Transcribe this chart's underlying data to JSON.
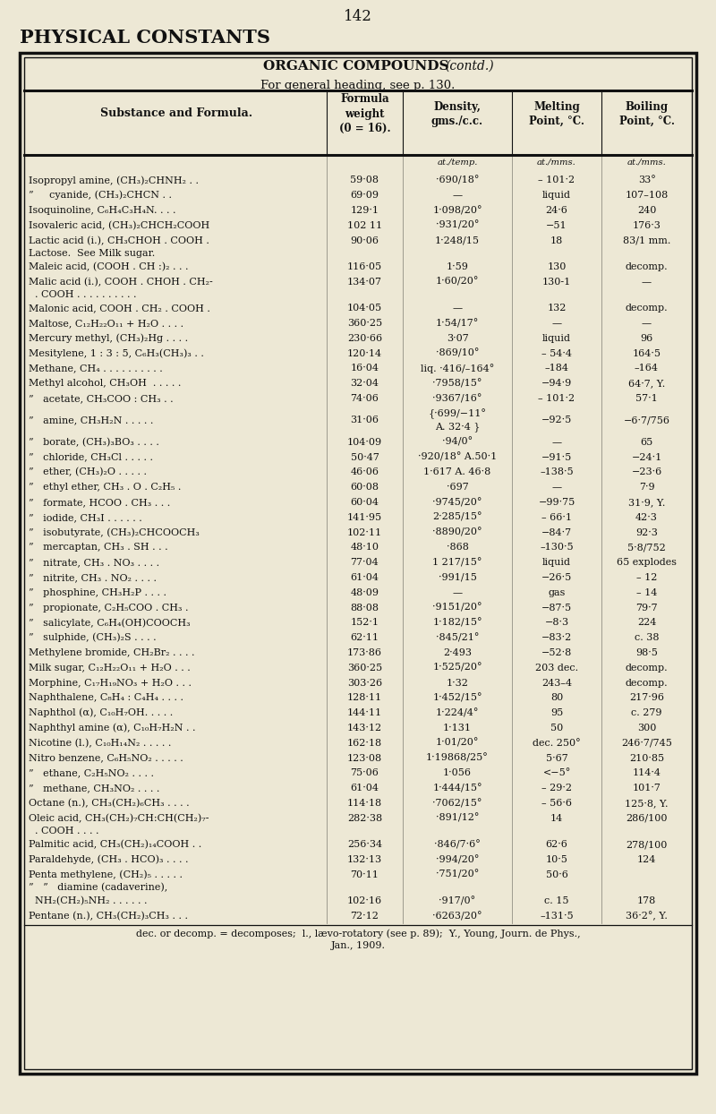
{
  "page_number": "142",
  "page_title": "PHYSICAL CONSTANTS",
  "table_title": "ORGANIC COMPOUNDS",
  "table_title_italic": "(contd.)",
  "table_subtitle": "For general heading, see p. 130.",
  "col_headers": [
    "Substance and Formula.",
    "Formula\nweight\n(0 = 16).",
    "Density,\ngms./c.c.",
    "Melting\nPoint, °C.",
    "Boiling\nPoint, °C."
  ],
  "sub_header_density": "at./temp.",
  "sub_header_mp": "at./mms.",
  "sub_header_bp": "at./mms.",
  "rows": [
    [
      "Isopropyl amine, (CH₃)₂CHNH₂ . .",
      "59·08",
      "·690/18°",
      "– 101·2",
      "33°"
    ],
    [
      "”     cyanide, (CH₃)₂CHCN . .",
      "69·09",
      "—",
      "liquid",
      "107–108"
    ],
    [
      "Isoquinoline, C₆H₄C₃H₄N. . . .",
      "129·1",
      "1·098/20°",
      "24·6",
      "240"
    ],
    [
      "Isovaleric acid, (CH₃)₂CHCH₂COOH",
      "102 11",
      "·931/20°",
      "−51",
      "176·3"
    ],
    [
      "Lactic acid (i.), CH₃CHOH . COOH .",
      "90·06",
      "1·248/15",
      "18",
      "83/1 mm."
    ],
    [
      "Lactose.  See Milk sugar.",
      "",
      "",
      "",
      ""
    ],
    [
      "Maleic acid, (COOH . CH :)₂ . . .",
      "116·05",
      "1·59",
      "130",
      "decomp."
    ],
    [
      "Malic acid (i.), COOH . CHOH . CH₂-",
      "134·07",
      "1·60/20°",
      "130-1",
      "—"
    ],
    [
      "  . COOH . . . . . . . . . .",
      "",
      "",
      "",
      ""
    ],
    [
      "Malonic acid, COOH . CH₂ . COOH .",
      "104·05",
      "—",
      "132",
      "decomp."
    ],
    [
      "Maltose, C₁₂H₂₂O₁₁ + H₂O . . . .",
      "360·25",
      "1·54/17°",
      "—",
      "—"
    ],
    [
      "Mercury methyl, (CH₃)₂Hg . . . .",
      "230·66",
      "3·07",
      "liquid",
      "96"
    ],
    [
      "Mesitylene, 1 : 3 : 5, C₆H₃(CH₃)₃ . .",
      "120·14",
      "·869/10°",
      "– 54·4",
      "164·5"
    ],
    [
      "Methane, CH₄ . . . . . . . . . .",
      "16·04",
      "liq. ·416/–164°",
      "–184",
      "–164"
    ],
    [
      "Methyl alcohol, CH₃OH  . . . . .",
      "32·04",
      "·7958/15°",
      "−94·9",
      "64·7, Y."
    ],
    [
      "”   acetate, CH₃COO : CH₃ . .",
      "74·06",
      "·9367/16°",
      "– 101·2",
      "57·1"
    ],
    [
      "”   amine, CH₃H₂N . . . . .",
      "31·06",
      "{·699/−11°\nA. 32·4 }",
      "−92·5",
      "−6·7/756"
    ],
    [
      "”   borate, (CH₃)₃BO₃ . . . .",
      "104·09",
      "·94/0°",
      "—",
      "65"
    ],
    [
      "”   chloride, CH₃Cl . . . . .",
      "50·47",
      "·920/18° A.50·1",
      "−91·5",
      "−24·1"
    ],
    [
      "”   ether, (CH₃)₂O . . . . .",
      "46·06",
      "1·617 A. 46·8",
      "–138·5",
      "−23·6"
    ],
    [
      "”   ethyl ether, CH₃ . O . C₂H₅ .",
      "60·08",
      "·697",
      "—",
      "7·9"
    ],
    [
      "”   formate, HCOO . CH₃ . . .",
      "60·04",
      "·9745/20°",
      "−99·75",
      "31·9, Y."
    ],
    [
      "”   iodide, CH₃I . . . . . .",
      "141·95",
      "2·285/15°",
      "– 66·1",
      "42·3"
    ],
    [
      "”   isobutyrate, (CH₃)₂CHCOOCH₃",
      "102·11",
      "·8890/20°",
      "−84·7",
      "92·3"
    ],
    [
      "”   mercaptan, CH₃ . SH . . .",
      "48·10",
      "·868",
      "–130·5",
      "5·8/752"
    ],
    [
      "”   nitrate, CH₃ . NO₃ . . . .",
      "77·04",
      "1 217/15°",
      "liquid",
      "65 explodes"
    ],
    [
      "”   nitrite, CH₃ . NO₂ . . . .",
      "61·04",
      "·991/15",
      "−26·5",
      "– 12"
    ],
    [
      "”   phosphine, CH₃H₂P . . . .",
      "48·09",
      "—",
      "gas",
      "– 14"
    ],
    [
      "”   propionate, C₂H₅COO . CH₃ .",
      "88·08",
      "·9151/20°",
      "−87·5",
      "79·7"
    ],
    [
      "”   salicylate, C₆H₄(OH)COOCH₃",
      "152·1",
      "1·182/15°",
      "−8·3",
      "224"
    ],
    [
      "”   sulphide, (CH₃)₂S . . . .",
      "62·11",
      "·845/21°",
      "−83·2",
      "c. 38"
    ],
    [
      "Methylene bromide, CH₂Br₂ . . . .",
      "173·86",
      "2·493",
      "−52·8",
      "98·5"
    ],
    [
      "Milk sugar, C₁₂H₂₂O₁₁ + H₂O . . .",
      "360·25",
      "1·525/20°",
      "203 dec.",
      "decomp."
    ],
    [
      "Morphine, C₁₇H₁₉NO₃ + H₂O . . .",
      "303·26",
      "1·32",
      "243–4",
      "decomp."
    ],
    [
      "Naphthalene, C₈H₄ : C₄H₄ . . . .",
      "128·11",
      "1·452/15°",
      "80",
      "217·96"
    ],
    [
      "Naphthol (α), C₁₀H₇OH. . . . .",
      "144·11",
      "1·224/4°",
      "95",
      "c. 279"
    ],
    [
      "Naphthyl amine (α), C₁₀H₇H₂N . .",
      "143·12",
      "1·131",
      "50",
      "300"
    ],
    [
      "Nicotine (l.), C₁₀H₁₄N₂ . . . . .",
      "162·18",
      "1·01/20°",
      "dec. 250°",
      "246·7/745"
    ],
    [
      "Nitro benzene, C₆H₅NO₂ . . . . .",
      "123·08",
      "1·19868/25°",
      "5·67",
      "210·85"
    ],
    [
      "”   ethane, C₂H₅NO₂ . . . .",
      "75·06",
      "1·056",
      "<−5°",
      "114·4"
    ],
    [
      "”   methane, CH₃NO₂ . . . .",
      "61·04",
      "1·444/15°",
      "– 29·2",
      "101·7"
    ],
    [
      "Octane (n.), CH₃(CH₂)₆CH₃ . . . .",
      "114·18",
      "·7062/15°",
      "– 56·6",
      "125·8, Y."
    ],
    [
      "Oleic acid, CH₃(CH₂)₇CH:CH(CH₂)₇-",
      "282·38",
      "·891/12°",
      "14",
      "286/100"
    ],
    [
      "  . COOH . . . .",
      "",
      "",
      "",
      ""
    ],
    [
      "Palmitic acid, CH₃(CH₂)₁₄COOH . .",
      "256·34",
      "·846/7·6°",
      "62·6",
      "278/100"
    ],
    [
      "Paraldehyde, (CH₃ . HCO)₃ . . . .",
      "132·13",
      "·994/20°",
      "10·5",
      "124"
    ],
    [
      "Penta methylene, (CH₂)₅ . . . . .",
      "70·11",
      "·751/20°",
      "50·6",
      ""
    ],
    [
      "”   ”   diamine (cadaverine),",
      "",
      "",
      "",
      ""
    ],
    [
      "  NH₂(CH₂)₅NH₂ . . . . . .",
      "102·16",
      "·917/0°",
      "c. 15",
      "178"
    ],
    [
      "Pentane (n.), CH₃(CH₂)₃CH₃ . . .",
      "72·12",
      "·6263/20°",
      "–131·5",
      "36·2°, Y."
    ]
  ],
  "footnote_line1": "dec. or decomp. = decomposes;  l., lævo-rotatory (see p. 89);  Y., Young, Journ. de Phys.,",
  "footnote_line2": "Jan., 1909.",
  "bg_color": "#ede8d5",
  "text_color": "#111111"
}
